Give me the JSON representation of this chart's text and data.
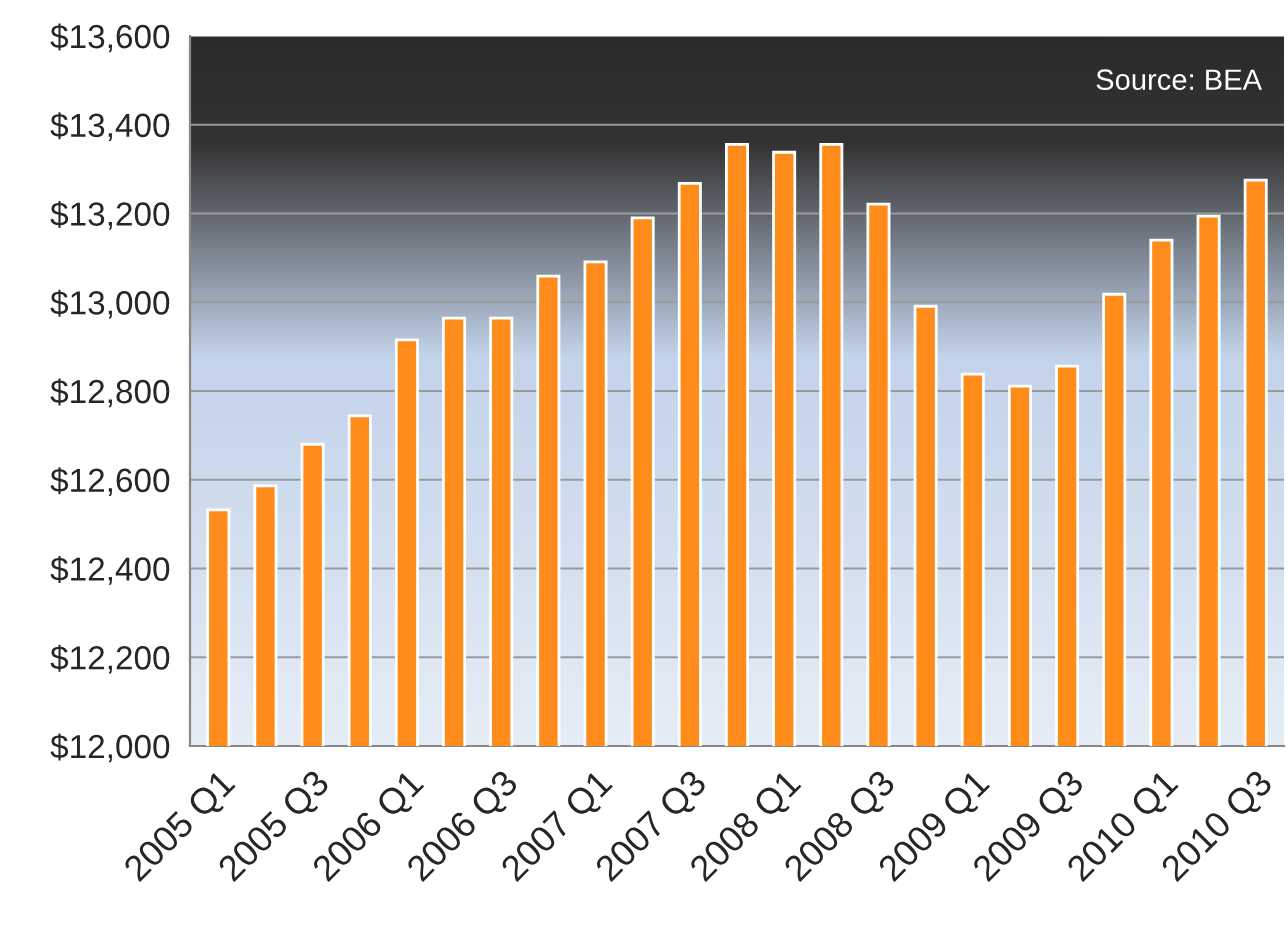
{
  "chart_data": {
    "type": "bar",
    "categories": [
      "2005 Q1",
      null,
      "2005 Q3",
      null,
      "2006 Q1",
      null,
      "2006 Q3",
      null,
      "2007 Q1",
      null,
      "2007 Q3",
      null,
      "2008 Q1",
      null,
      "2008 Q3",
      null,
      "2009 Q1",
      null,
      "2009 Q3",
      null,
      "2010 Q1",
      null,
      "2010 Q3"
    ],
    "values": [
      12532,
      12586,
      12680,
      12744,
      12915,
      12964,
      12964,
      13059,
      13091,
      13190,
      13268,
      13356,
      13338,
      13356,
      13221,
      12991,
      12838,
      12811,
      12856,
      13018,
      13140,
      13194,
      13275
    ],
    "color": "#ff8c1a",
    "ylim": [
      12000,
      13600
    ],
    "yticks": [
      {
        "value": 12000,
        "label": "$12,000"
      },
      {
        "value": 12200,
        "label": "$12,200"
      },
      {
        "value": 12400,
        "label": "$12,400"
      },
      {
        "value": 12600,
        "label": "$12,600"
      },
      {
        "value": 12800,
        "label": "$12,800"
      },
      {
        "value": 13000,
        "label": "$13,000"
      },
      {
        "value": 13200,
        "label": "$13,200"
      },
      {
        "value": 13400,
        "label": "$13,400"
      },
      {
        "value": 13600,
        "label": "$13,600"
      }
    ],
    "grid": "y",
    "annotations": [
      "Source: BEA"
    ]
  }
}
